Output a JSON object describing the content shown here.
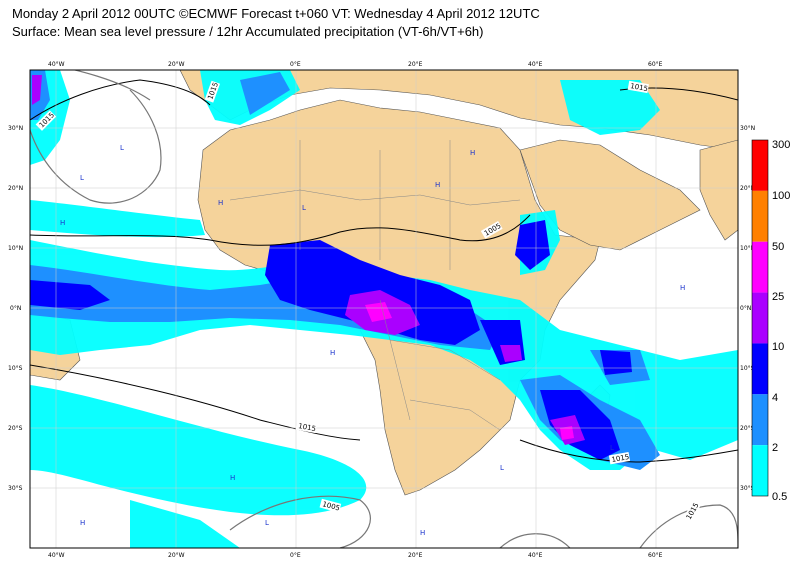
{
  "header": {
    "line1": "Monday 2 April 2012 00UTC ©ECMWF Forecast t+060 VT: Wednesday 4 April 2012 12UTC",
    "line2": "Surface: Mean sea level pressure / 12hr Accumulated precipitation (VT-6h/VT+6h)"
  },
  "axes": {
    "lon_top": [
      "40°W",
      "20°W",
      "0°E",
      "20°E",
      "40°E",
      "60°E"
    ],
    "lon_bottom": [
      "40°W",
      "20°W",
      "0°E",
      "20°E",
      "40°E",
      "60°E"
    ],
    "lat_left": [
      "30°N",
      "20°N",
      "10°N",
      "0°N",
      "10°S",
      "20°S",
      "30°S"
    ],
    "lat_right": [
      "30°N",
      "20°N",
      "10°N",
      "0°N",
      "10°S",
      "20°S",
      "30°S"
    ]
  },
  "legend": {
    "levels": [
      "300",
      "100",
      "50",
      "25",
      "10",
      "4",
      "2",
      "0.5"
    ],
    "colors": [
      "#ff2020",
      "#ff8000",
      "#ff00ff",
      "#cc33cc",
      "#3333ff",
      "#1a1acc",
      "#00e5ff",
      "#00e5ff"
    ],
    "band_colors": [
      "#ff0000",
      "#ff8000",
      "#ff00ff",
      "#aa00ff",
      "#0000ff",
      "#1e90ff",
      "#00ffff"
    ]
  },
  "isobars": {
    "labels": [
      "1015",
      "1005",
      "1015",
      "1005",
      "1015",
      "1015",
      "1015",
      "1015"
    ]
  },
  "pressure_centres": {
    "high": "H",
    "low": "L"
  }
}
